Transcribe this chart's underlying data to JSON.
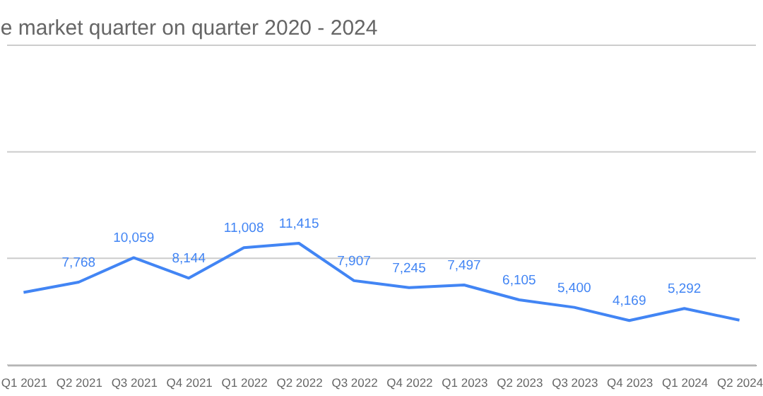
{
  "chart_data": {
    "type": "line",
    "title": "e market quarter on quarter 2020 - 2024",
    "categories": [
      "Q1 2021",
      "Q2 2021",
      "Q3 2021",
      "Q4 2021",
      "Q1 2022",
      "Q2 2022",
      "Q3 2022",
      "Q4 2022",
      "Q1 2023",
      "Q2 2023",
      "Q3 2023",
      "Q4 2023",
      "Q1 2024",
      "Q2 2024"
    ],
    "series": [
      {
        "color": "#4285f4",
        "values": [
          6800,
          7768,
          10059,
          8144,
          11008,
          11415,
          7907,
          7245,
          7497,
          6105,
          5400,
          4169,
          5292,
          4200
        ],
        "value_labels": [
          null,
          "7,768",
          "10,059",
          "8,144",
          "11,008",
          "11,415",
          "7,907",
          "7,245",
          "7,497",
          "6,105",
          "5,400",
          "4,169",
          "5,292",
          null
        ]
      }
    ],
    "ylim": [
      0,
      30000
    ],
    "yticks": [
      {
        "value": 0,
        "label": null
      },
      {
        "value": 10000,
        "label": null
      },
      {
        "value": 20000,
        "label": null
      },
      {
        "value": 30000,
        "label": null
      }
    ],
    "grid": "y",
    "tick_labels": "x",
    "legend": false,
    "marker": "none",
    "line_style": "solid"
  }
}
